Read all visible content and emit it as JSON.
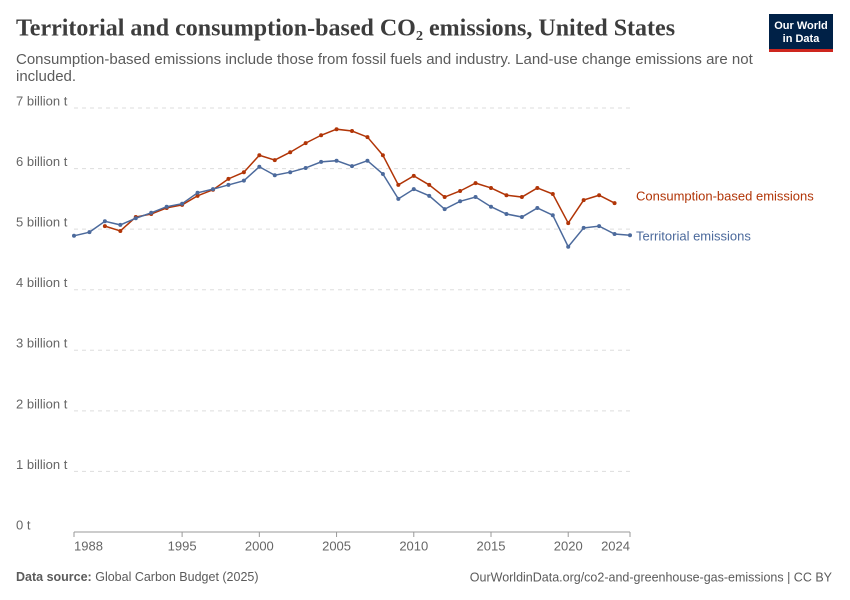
{
  "chart_data": {
    "type": "line",
    "title": "Territorial and consumption-based CO₂ emissions, United States",
    "subtitle": [
      "Consumption-based emissions include those from fossil fuels and industry. Land-use change emissions are not",
      "included."
    ],
    "logo": [
      "Our World",
      "in Data"
    ],
    "source_label": "Data source:",
    "source": "Global Carbon Budget (2025)",
    "url": "OurWorldinData.org/co2-and-greenhouse-gas-emissions | CC BY",
    "x": [
      1988,
      1989,
      1990,
      1991,
      1992,
      1993,
      1994,
      1995,
      1996,
      1997,
      1998,
      1999,
      2000,
      2001,
      2002,
      2003,
      2004,
      2005,
      2006,
      2007,
      2008,
      2009,
      2010,
      2011,
      2012,
      2013,
      2014,
      2015,
      2016,
      2017,
      2018,
      2019,
      2020,
      2021,
      2022,
      2023,
      2024
    ],
    "series": [
      {
        "name": "Consumption-based emissions",
        "color": "#b13507",
        "values": [
          null,
          null,
          5.05,
          4.97,
          5.2,
          5.25,
          5.35,
          5.4,
          5.55,
          5.65,
          5.83,
          5.94,
          6.22,
          6.14,
          6.27,
          6.42,
          6.55,
          6.65,
          6.62,
          6.52,
          6.22,
          5.73,
          5.88,
          5.73,
          5.53,
          5.63,
          5.76,
          5.68,
          5.56,
          5.53,
          5.68,
          5.58,
          5.1,
          5.48,
          5.56,
          5.43,
          null
        ]
      },
      {
        "name": "Territorial emissions",
        "color": "#4c6a9c",
        "values": [
          4.89,
          4.95,
          5.13,
          5.07,
          5.18,
          5.27,
          5.37,
          5.42,
          5.6,
          5.66,
          5.73,
          5.8,
          6.03,
          5.89,
          5.94,
          6.01,
          6.11,
          6.13,
          6.04,
          6.13,
          5.91,
          5.5,
          5.66,
          5.55,
          5.33,
          5.46,
          5.53,
          5.37,
          5.25,
          5.2,
          5.35,
          5.23,
          4.71,
          5.02,
          5.05,
          4.92,
          4.9
        ]
      }
    ],
    "xlim": [
      1988,
      2024
    ],
    "xticks": [
      1988,
      1995,
      2000,
      2005,
      2010,
      2015,
      2020,
      2024
    ],
    "ylim": [
      0,
      7
    ],
    "yticks": [
      {
        "value": 0,
        "label": "0 t"
      },
      {
        "value": 1,
        "label": "1 billion t"
      },
      {
        "value": 2,
        "label": "2 billion t"
      },
      {
        "value": 3,
        "label": "3 billion t"
      },
      {
        "value": 4,
        "label": "4 billion t"
      },
      {
        "value": 5,
        "label": "5 billion t"
      },
      {
        "value": 6,
        "label": "6 billion t"
      },
      {
        "value": 7,
        "label": "7 billion t"
      }
    ],
    "grid": true
  }
}
